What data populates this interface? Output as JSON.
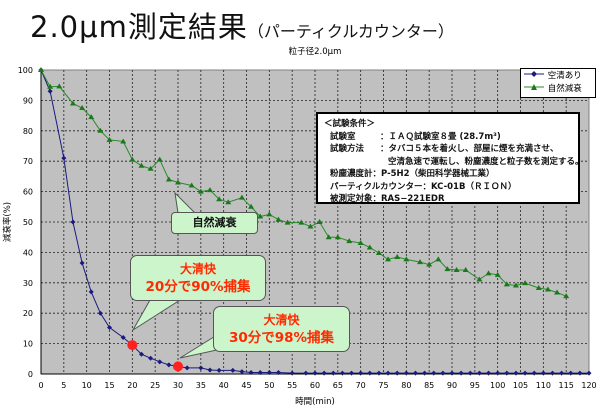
{
  "title": "2.0μm測定結果",
  "title_suffix": "（パーティクルカウンター）",
  "chart_data": {
    "type": "line",
    "title": "粒子径2.0μm",
    "xlabel": "時間(min)",
    "ylabel": "減衰率(%)",
    "xlim": [
      0,
      120
    ],
    "ylim": [
      0,
      100
    ],
    "xticks": [
      0,
      5,
      10,
      15,
      20,
      25,
      30,
      35,
      40,
      45,
      50,
      55,
      60,
      65,
      70,
      75,
      80,
      85,
      90,
      95,
      100,
      105,
      110,
      115,
      120
    ],
    "yticks": [
      0,
      10,
      20,
      30,
      40,
      50,
      60,
      70,
      80,
      90,
      100
    ],
    "grid": true,
    "legend_position": "top-right",
    "series": [
      {
        "name": "空清あり",
        "color": "#1a1a80",
        "marker": "diamond",
        "x": [
          0,
          2,
          5,
          7,
          9,
          11,
          13,
          15,
          18,
          20,
          22,
          24,
          26,
          28,
          30,
          32,
          35,
          37,
          39,
          42,
          44,
          46,
          48,
          50,
          52,
          55,
          58,
          60,
          62,
          64,
          66,
          68,
          70,
          72,
          74,
          76,
          78,
          80,
          82,
          84,
          86,
          88,
          90,
          92,
          94,
          96,
          98,
          100,
          102,
          104,
          106,
          108,
          110,
          112,
          114,
          116,
          118,
          120
        ],
        "y": [
          100,
          93,
          71,
          50,
          36.5,
          27,
          20,
          15.3,
          12,
          9.5,
          6.5,
          5.2,
          4,
          3,
          2.5,
          2,
          2,
          1.3,
          1.2,
          1.2,
          0.8,
          0.5,
          0.5,
          0.5,
          0.5,
          0.3,
          0.3,
          0.3,
          0.3,
          0.3,
          0.3,
          0.3,
          0.3,
          0.3,
          0.3,
          0.3,
          0.3,
          0.3,
          0.3,
          0.3,
          0.3,
          0.3,
          0.3,
          0.3,
          0.3,
          0.3,
          0.3,
          0.3,
          0.3,
          0.3,
          0.3,
          0.3,
          0.3,
          0.3,
          0.3,
          0.3,
          0.3,
          0.3
        ]
      },
      {
        "name": "自然減衰",
        "color": "#2a8a2a",
        "marker": "triangle",
        "x": [
          0,
          2,
          4,
          7,
          9,
          11,
          13,
          15,
          18,
          20,
          22,
          24,
          26,
          28,
          30,
          33,
          35,
          37,
          39,
          41,
          44,
          46,
          48,
          50,
          52,
          54,
          57,
          59,
          61,
          63,
          65,
          67.5,
          70,
          72,
          74,
          76,
          78,
          80,
          83,
          85,
          87,
          89,
          91,
          93,
          96,
          98,
          100,
          102,
          104,
          106,
          109,
          111,
          113,
          115
        ],
        "y": [
          100,
          94.5,
          94.6,
          89,
          87.5,
          84.5,
          80,
          77,
          76.5,
          70.5,
          68.5,
          67.5,
          70.5,
          64,
          63,
          62,
          60,
          60.5,
          57.5,
          56.5,
          58,
          55,
          51.8,
          52.5,
          50.8,
          49.8,
          49.8,
          48.5,
          50,
          45,
          45,
          43.7,
          43.1,
          41.6,
          39.8,
          37.7,
          38.5,
          37.7,
          36.8,
          36,
          37.7,
          34.5,
          34.2,
          34.2,
          31.1,
          33.1,
          32.6,
          29.5,
          29.1,
          29.9,
          28.3,
          27.8,
          26.8,
          25.6
        ]
      }
    ],
    "highlights": [
      {
        "x": 20,
        "y": 9.5,
        "color": "#ff2020"
      },
      {
        "x": 30,
        "y": 2.5,
        "color": "#ff2020"
      }
    ],
    "annotations": {
      "natural": "自然減衰",
      "c1_line1": "大清快",
      "c1_line2": "20分で90%捕集",
      "c2_line1": "大清快",
      "c2_line2": "30分で98%捕集"
    }
  },
  "conditions": {
    "heading": "＜試験条件＞",
    "room_label": "試験室",
    "room_value": "：ＩＡＱ試験室８畳 (28.7m³)",
    "method_label": "試験方法",
    "method_value1": "：タバコ５本を着火し、部屋に煙を充満させ、",
    "method_value2": "空清急速で運転し、粉塵濃度と粒子数を測定する。",
    "dust_meter": "粉塵濃度計：P-5H2（柴田科学器械工業）",
    "counter": "パーティクルカウンター：KC-01B（ＲＩＯＮ）",
    "target": "被測定対象：RAS−221EDR"
  }
}
